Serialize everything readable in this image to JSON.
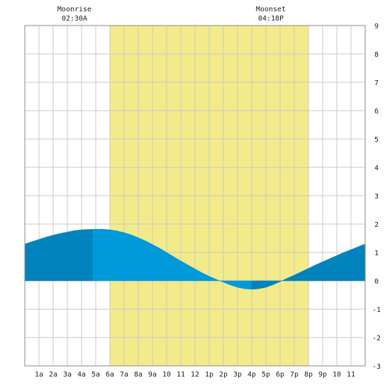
{
  "moon": {
    "rise_label": "Moonrise",
    "rise_time": "02:30A",
    "set_label": "Moonset",
    "set_time": "04:18P"
  },
  "chart_data": {
    "type": "area",
    "title": "",
    "xlabel": "",
    "ylabel": "",
    "xlim": [
      0,
      24
    ],
    "ylim": [
      -3,
      9
    ],
    "grid": true,
    "x_ticks": [
      1,
      2,
      3,
      4,
      5,
      6,
      7,
      8,
      9,
      10,
      11,
      12,
      13,
      14,
      15,
      16,
      17,
      18,
      19,
      20,
      21,
      22,
      23
    ],
    "x_tick_labels": [
      "1a",
      "2a",
      "3a",
      "4a",
      "5a",
      "6a",
      "7a",
      "8a",
      "9a",
      "10",
      "11",
      "12",
      "1p",
      "2p",
      "3p",
      "4p",
      "5p",
      "6p",
      "7p",
      "8p",
      "9p",
      "10",
      "11"
    ],
    "y_ticks": [
      -3,
      -2,
      -1,
      0,
      1,
      2,
      3,
      4,
      5,
      6,
      7,
      8,
      9
    ],
    "daylight": {
      "start_hour": 6.0,
      "end_hour": 20.0,
      "color": "#f3ea8a"
    },
    "moonrise_hour": 2.5,
    "moonset_hour": 16.3,
    "tide": {
      "x": [
        0,
        0.5,
        1,
        1.5,
        2,
        2.5,
        3,
        3.5,
        4,
        4.5,
        5,
        5.5,
        6,
        6.5,
        7,
        7.5,
        8,
        8.5,
        9,
        9.5,
        10,
        10.5,
        11,
        11.5,
        12,
        12.5,
        13,
        13.5,
        14,
        14.5,
        15,
        15.5,
        16,
        16.5,
        17,
        17.5,
        18,
        18.5,
        19,
        19.5,
        20,
        20.5,
        21,
        21.5,
        22,
        22.5,
        23,
        23.5,
        24
      ],
      "y": [
        1.3,
        1.38,
        1.46,
        1.54,
        1.61,
        1.67,
        1.72,
        1.77,
        1.8,
        1.81,
        1.82,
        1.82,
        1.8,
        1.76,
        1.7,
        1.62,
        1.52,
        1.41,
        1.28,
        1.15,
        1.0,
        0.85,
        0.7,
        0.56,
        0.42,
        0.28,
        0.16,
        0.05,
        -0.05,
        -0.15,
        -0.23,
        -0.28,
        -0.3,
        -0.28,
        -0.23,
        -0.14,
        -0.03,
        0.09,
        0.2,
        0.32,
        0.44,
        0.56,
        0.67,
        0.78,
        0.89,
        1.0,
        1.1,
        1.2,
        1.3
      ]
    },
    "colors": {
      "dark": "#0083bd",
      "light": "#0099d9",
      "grid": "#c8c8c8"
    },
    "shade_bands": [
      {
        "start_hour": 0,
        "end_hour": 4.8,
        "shade": "dark"
      },
      {
        "start_hour": 4.8,
        "end_hour": 16.0,
        "shade": "light"
      },
      {
        "start_hour": 16.0,
        "end_hour": 19.0,
        "shade": "dark"
      },
      {
        "start_hour": 19.0,
        "end_hour": 24.0,
        "shade": "dark"
      }
    ]
  }
}
